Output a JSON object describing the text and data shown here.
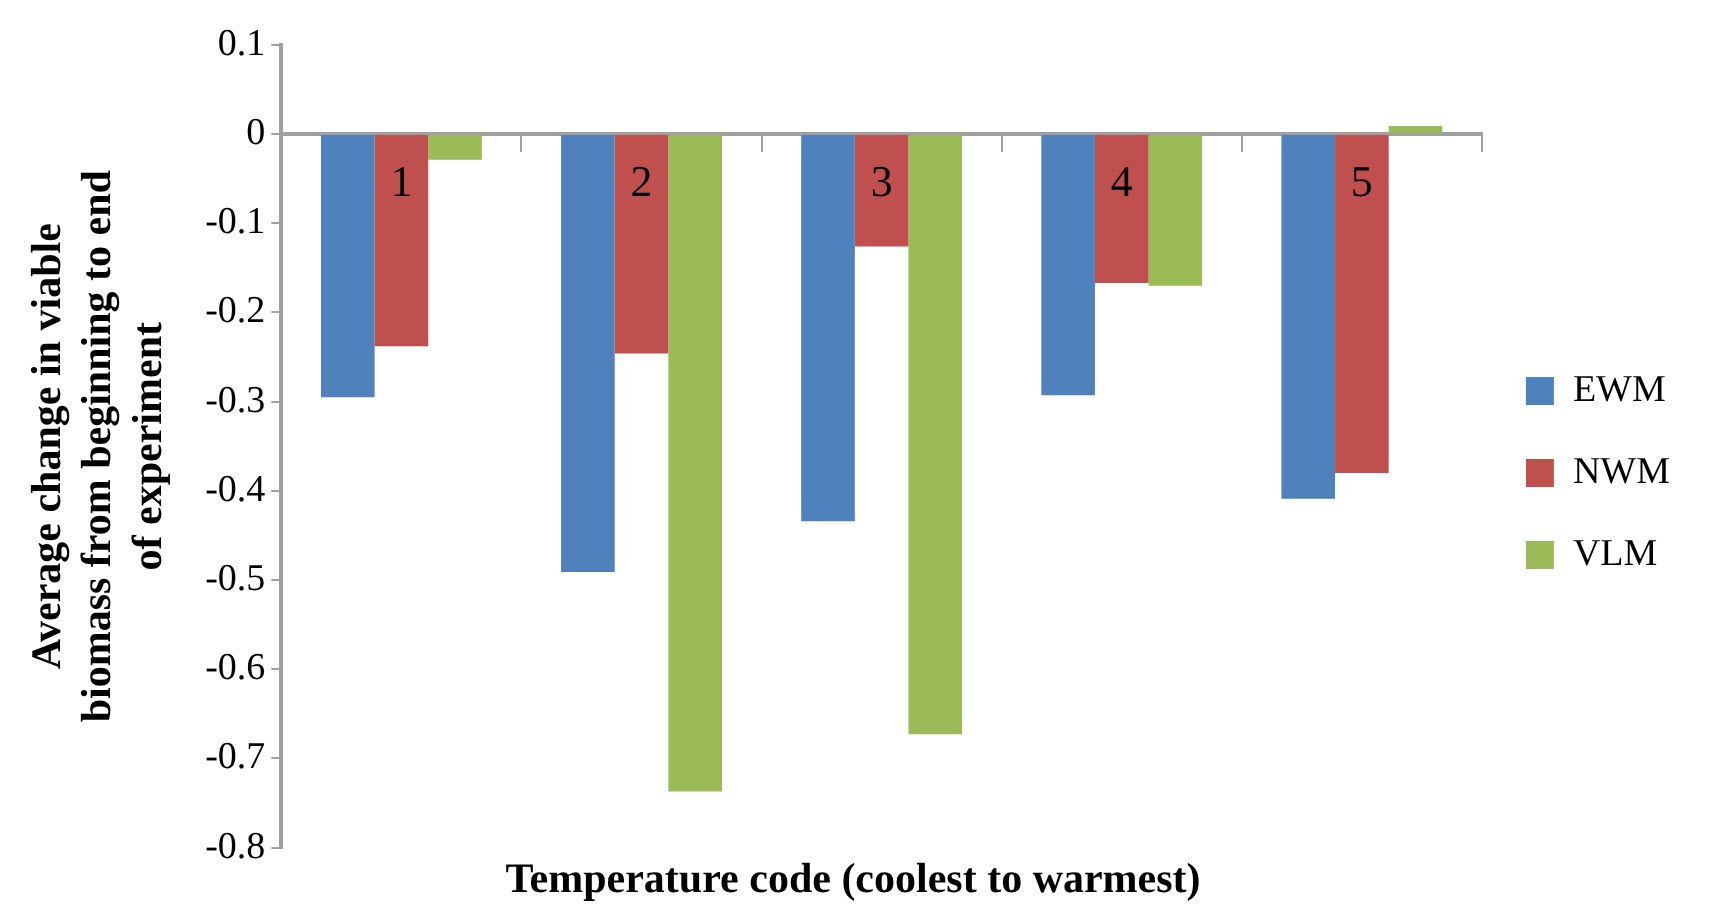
{
  "chart_data": {
    "type": "bar",
    "xlabel": "Temperature code (coolest to warmest)",
    "ylabel": "Average change in viable biomass from beginning to end of experiment",
    "categories": [
      "1",
      "2",
      "3",
      "4",
      "5"
    ],
    "series": [
      {
        "name": "EWM",
        "color": "#4f81bd",
        "values": [
          -0.295,
          -0.491,
          -0.434,
          -0.293,
          -0.409
        ]
      },
      {
        "name": "NWM",
        "color": "#c0504d",
        "values": [
          -0.238,
          -0.246,
          -0.126,
          -0.167,
          -0.38
        ]
      },
      {
        "name": "VLM",
        "color": "#9bbb59",
        "values": [
          -0.029,
          -0.737,
          -0.673,
          -0.17,
          0.009
        ]
      }
    ],
    "ylim": [
      -0.8,
      0.1
    ],
    "yticks": [
      -0.8,
      -0.7,
      -0.6,
      -0.5,
      -0.4,
      -0.3,
      -0.2,
      -0.1,
      0,
      0.1
    ],
    "grid": false,
    "legend": "right"
  }
}
